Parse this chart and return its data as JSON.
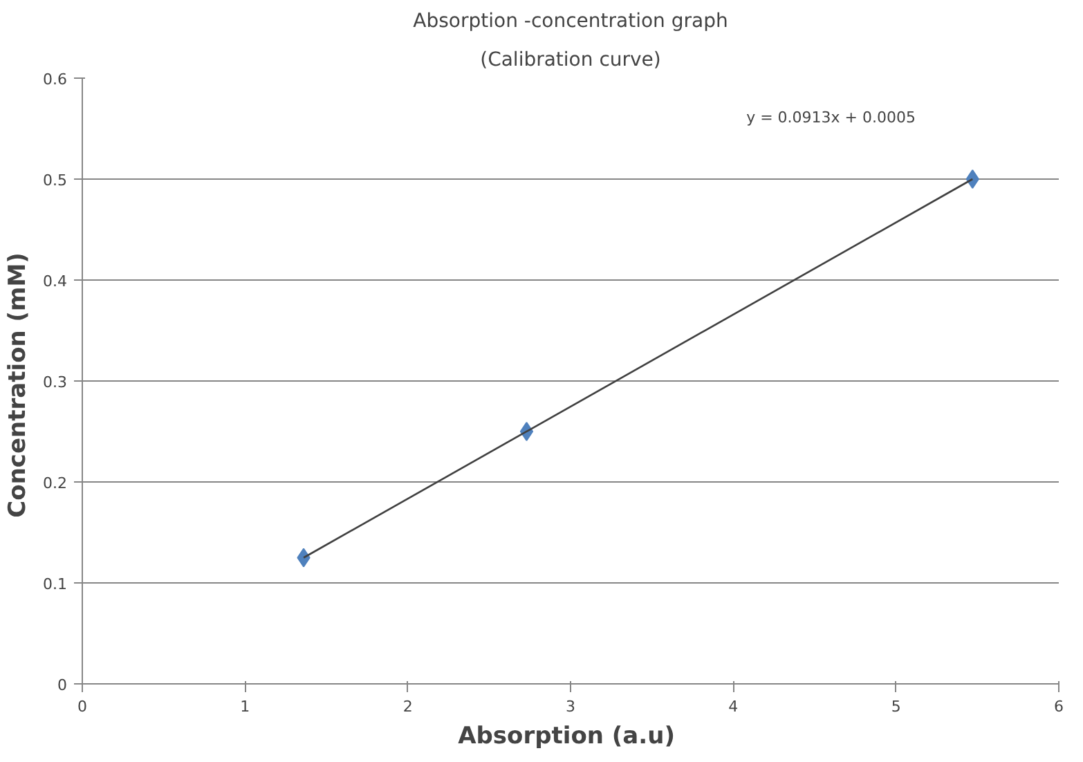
{
  "chart_data": {
    "type": "scatter",
    "title": "Absorption -concentration graph",
    "subtitle": "(Calibration curve)",
    "xlabel": "Absorption  (a.u)",
    "ylabel": "Concentration  (mM)",
    "series": [
      {
        "color": "#4f81bd",
        "x": [
          1.36,
          2.73,
          5.47
        ],
        "values": [
          0.125,
          0.25,
          0.5
        ],
        "marker": "diamond"
      },
      {
        "type": "line",
        "color": "#404040",
        "x": [
          1.36,
          5.47
        ],
        "values": [
          0.125,
          0.5
        ],
        "marker": "none",
        "line_style": "solid"
      }
    ],
    "xlim": [
      0,
      6
    ],
    "ylim": [
      0,
      0.6
    ],
    "xticks": [
      0,
      1,
      2,
      3,
      4,
      5,
      6
    ],
    "yticks": [
      0,
      0.1,
      0.2,
      0.3,
      0.4,
      0.5,
      0.6
    ],
    "grid": "y",
    "annotations": [
      "y = 0.0913x + 0.0005"
    ]
  }
}
